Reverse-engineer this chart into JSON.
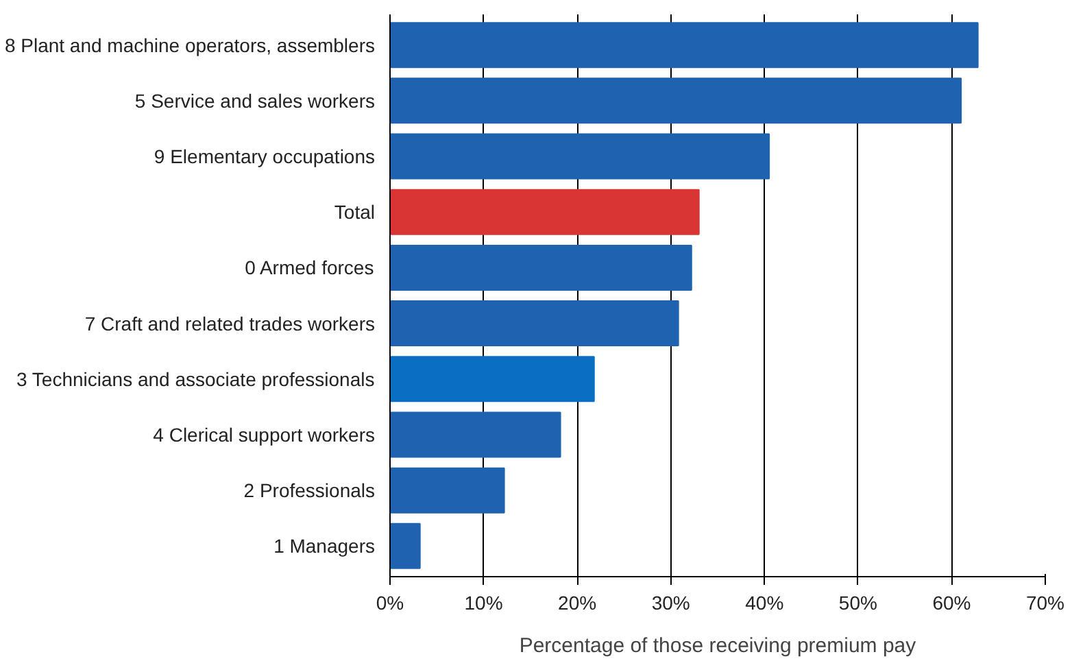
{
  "chart_data": {
    "type": "bar",
    "orientation": "horizontal",
    "xlabel": "Percentage of those receiving premium pay",
    "categories": [
      "8 Plant and machine operators, assemblers",
      "5 Service and sales workers",
      "9 Elementary occupations",
      "Total",
      "0 Armed forces",
      "7 Craft and related trades workers",
      "3 Technicians and associate professionals",
      "4 Clerical support workers",
      "2 Professionals",
      "1 Managers"
    ],
    "values": [
      62.8,
      61,
      40.5,
      33,
      32.2,
      30.8,
      21.8,
      18.2,
      12.2,
      3.2
    ],
    "colors": [
      "#1f63b0",
      "#1f63b0",
      "#1f63b0",
      "#d93535",
      "#1f63b0",
      "#1f63b0",
      "#0a6fc2",
      "#1f63b0",
      "#1f63b0",
      "#1f63b0"
    ],
    "xlim": [
      0,
      70
    ],
    "xticks": [
      {
        "value": 0,
        "label": "0%"
      },
      {
        "value": 10,
        "label": "10%"
      },
      {
        "value": 20,
        "label": "20%"
      },
      {
        "value": 30,
        "label": "30%"
      },
      {
        "value": 40,
        "label": "40%"
      },
      {
        "value": 50,
        "label": "50%"
      },
      {
        "value": 60,
        "label": "60%"
      },
      {
        "value": 70,
        "label": "70%"
      }
    ],
    "grid": "x"
  }
}
